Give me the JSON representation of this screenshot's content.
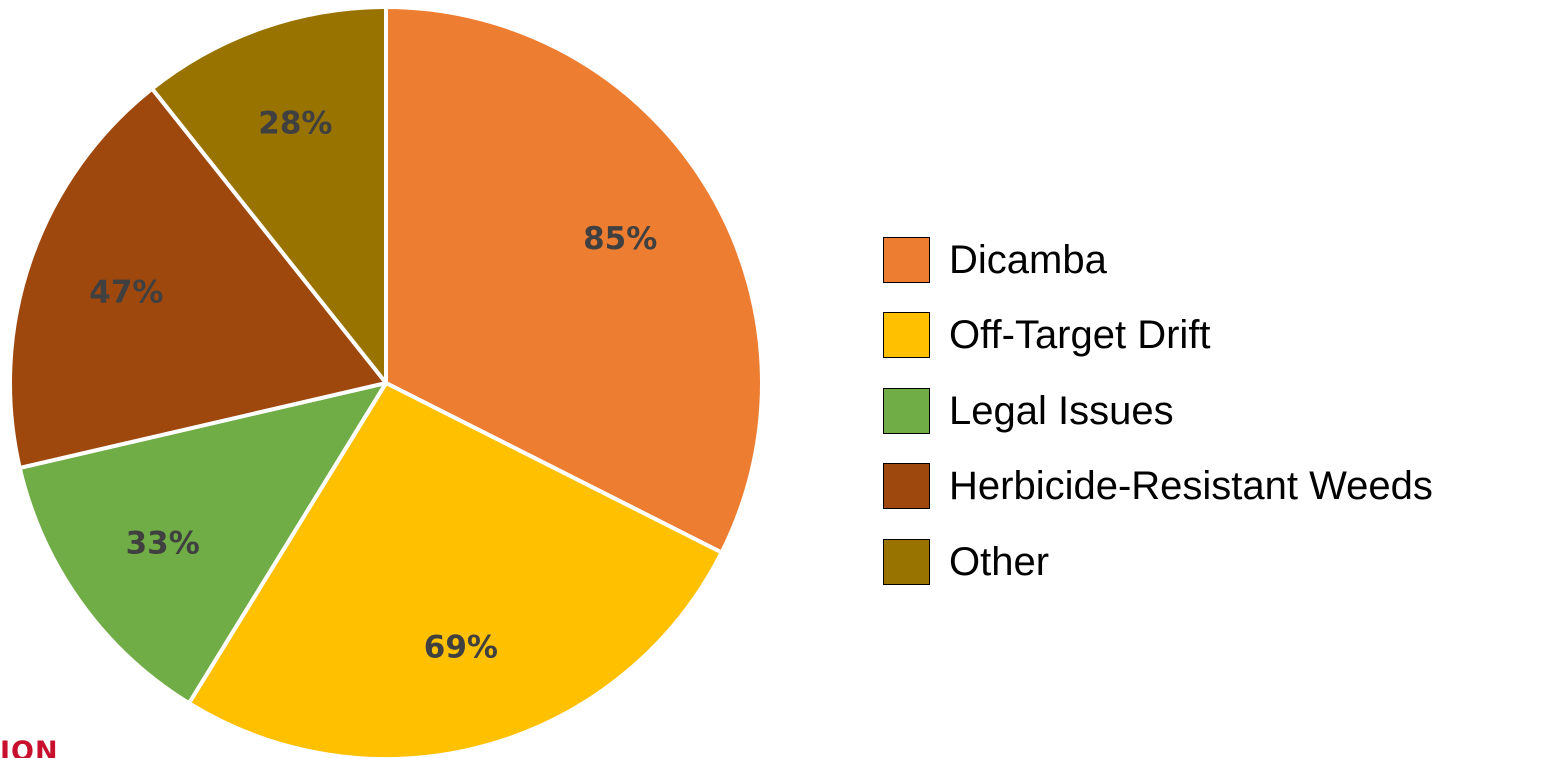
{
  "chart_data": {
    "type": "pie",
    "categories": [
      "Dicamba",
      "Off-Target Drift",
      "Legal Issues",
      "Herbicide-Resistant Weeds",
      "Other"
    ],
    "values": [
      85,
      69,
      33,
      47,
      28
    ],
    "labels": [
      "85%",
      "69%",
      "33%",
      "47%",
      "28%"
    ],
    "colors": [
      "#ED7D31",
      "#FFC000",
      "#70AD47",
      "#9E480E",
      "#997300"
    ],
    "start_angle": "12 o'clock",
    "direction": "clockwise",
    "legend_position": "right",
    "slice_border_color": "#FFFFFF"
  },
  "legend": {
    "items": [
      {
        "label": "Dicamba",
        "color": "#ED7D31"
      },
      {
        "label": "Off-Target Drift",
        "color": "#FFC000"
      },
      {
        "label": "Legal Issues",
        "color": "#70AD47"
      },
      {
        "label": "Herbicide-Resistant Weeds",
        "color": "#9E480E"
      },
      {
        "label": "Other",
        "color": "#997300"
      }
    ]
  },
  "logo": {
    "text": "ION",
    "color": "#C8102E"
  }
}
